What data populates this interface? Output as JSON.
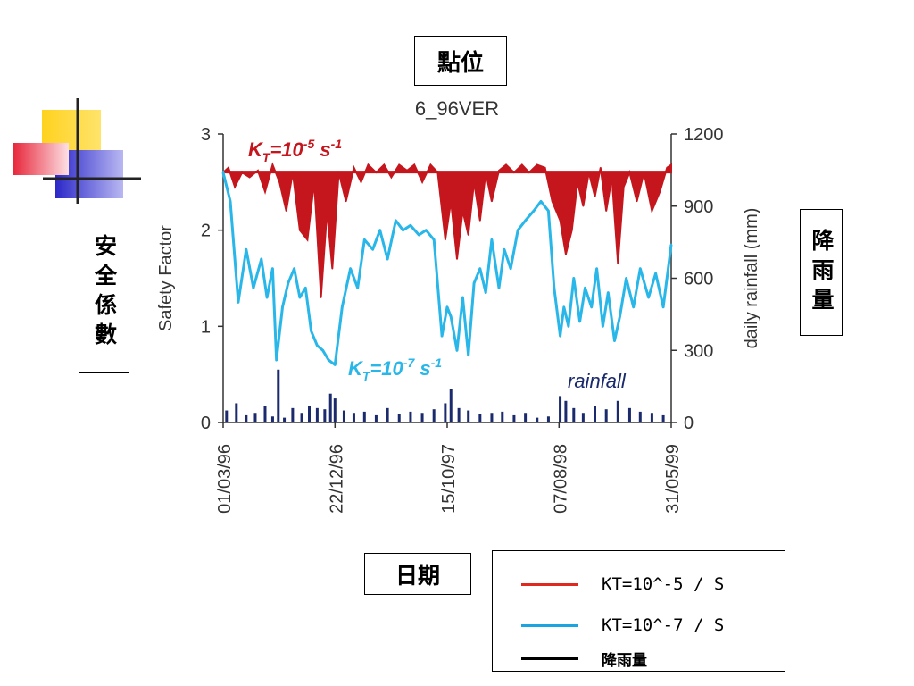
{
  "annotations": {
    "point_label": "點位",
    "date_label": "日期",
    "safety_label": "安全係數",
    "rainfall_label": "降雨量"
  },
  "legend": {
    "items": [
      {
        "label": "KT=10^-5 / S",
        "color": "#e0281e"
      },
      {
        "label": "KT=10^-7 / S",
        "color": "#1aa4e0"
      },
      {
        "label": "降雨量",
        "color": "#000000"
      }
    ]
  },
  "colors": {
    "red_series": "#c4161c",
    "blue_series": "#29b6e8",
    "rain_series": "#1a2a6c",
    "deco_yellow": "#ffd21f",
    "deco_blue": "#3a37d6",
    "deco_red": "#f04050"
  },
  "chart_data": {
    "type": "line",
    "title": "6_96VER",
    "ylabel": "Safety Factor",
    "y2label": "daily rainfall (mm)",
    "ylim": [
      0,
      3
    ],
    "y2lim": [
      0,
      1200
    ],
    "yticks": [
      "0",
      "1",
      "2",
      "3"
    ],
    "y2ticks": [
      "0",
      "300",
      "600",
      "900",
      "1200"
    ],
    "xticks": [
      "01/03/96",
      "22/12/96",
      "15/10/97",
      "07/08/98",
      "31/05/99"
    ],
    "xlim": [
      "1996-03-01",
      "1999-05-31"
    ],
    "annotations": {
      "red": {
        "base": "K",
        "sub": "T",
        "mid": "=10",
        "sup": "-5",
        "unit": " s",
        "unit_sup": "-1"
      },
      "blue": {
        "base": "K",
        "sub": "T",
        "mid": "=10",
        "sup": "-7",
        "unit": " s",
        "unit_sup": "-1"
      },
      "rain": "rainfall"
    },
    "series": [
      {
        "kind": "red",
        "axis": "left",
        "baseline": 2.6,
        "x": [
          "1996-03-01",
          "1996-03-15",
          "1996-04-01",
          "1996-04-20",
          "1996-05-10",
          "1996-06-01",
          "1996-06-20",
          "1996-07-10",
          "1996-07-28",
          "1996-08-15",
          "1996-09-01",
          "1996-09-20",
          "1996-10-10",
          "1996-10-28",
          "1996-11-15",
          "1996-12-01",
          "1996-12-15",
          "1997-01-01",
          "1997-01-20",
          "1997-02-10",
          "1997-03-01",
          "1997-03-20",
          "1997-04-10",
          "1997-05-01",
          "1997-05-20",
          "1997-06-10",
          "1997-07-01",
          "1997-07-20",
          "1997-08-10",
          "1997-09-01",
          "1997-09-20",
          "1997-10-10",
          "1997-10-25",
          "1997-11-10",
          "1997-11-25",
          "1997-12-10",
          "1997-12-25",
          "1998-01-10",
          "1998-01-25",
          "1998-02-10",
          "1998-03-01",
          "1998-03-20",
          "1998-04-10",
          "1998-05-01",
          "1998-05-20",
          "1998-06-10",
          "1998-07-01",
          "1998-07-20",
          "1998-08-10",
          "1998-08-25",
          "1998-09-10",
          "1998-09-25",
          "1998-10-10",
          "1998-10-25",
          "1998-11-10",
          "1998-11-25",
          "1998-12-10",
          "1998-12-25",
          "1999-01-10",
          "1999-01-25",
          "1999-02-10",
          "1999-03-01",
          "1999-03-20",
          "1999-04-10",
          "1999-05-01",
          "1999-05-20",
          "1999-05-31"
        ],
        "values": [
          2.6,
          2.65,
          2.45,
          2.6,
          2.55,
          2.62,
          2.4,
          2.68,
          2.5,
          2.2,
          2.6,
          2.0,
          1.9,
          2.5,
          1.3,
          2.2,
          1.6,
          2.6,
          2.3,
          2.65,
          2.5,
          2.68,
          2.6,
          2.68,
          2.55,
          2.68,
          2.62,
          2.68,
          2.5,
          2.68,
          2.6,
          1.9,
          2.3,
          1.7,
          2.2,
          1.95,
          2.5,
          2.1,
          2.6,
          2.3,
          2.62,
          2.68,
          2.6,
          2.68,
          2.6,
          2.68,
          2.65,
          2.3,
          2.1,
          1.75,
          2.0,
          2.5,
          2.25,
          2.6,
          2.35,
          2.65,
          2.2,
          2.55,
          1.65,
          2.45,
          2.6,
          2.3,
          2.6,
          2.2,
          2.4,
          2.65,
          2.68
        ]
      },
      {
        "kind": "blue",
        "axis": "left",
        "x": [
          "1996-03-01",
          "1996-03-20",
          "1996-04-10",
          "1996-05-01",
          "1996-05-20",
          "1996-06-10",
          "1996-06-25",
          "1996-07-10",
          "1996-07-20",
          "1996-08-05",
          "1996-08-20",
          "1996-09-05",
          "1996-09-20",
          "1996-10-05",
          "1996-10-20",
          "1996-11-05",
          "1996-11-20",
          "1996-12-05",
          "1996-12-22",
          "1997-01-10",
          "1997-02-01",
          "1997-02-20",
          "1997-03-10",
          "1997-04-01",
          "1997-04-20",
          "1997-05-10",
          "1997-06-01",
          "1997-06-20",
          "1997-07-10",
          "1997-08-01",
          "1997-08-20",
          "1997-09-10",
          "1997-10-01",
          "1997-10-15",
          "1997-10-25",
          "1997-11-10",
          "1997-11-25",
          "1997-12-10",
          "1997-12-25",
          "1998-01-10",
          "1998-01-25",
          "1998-02-10",
          "1998-03-01",
          "1998-03-15",
          "1998-04-01",
          "1998-04-20",
          "1998-05-10",
          "1998-06-01",
          "1998-06-20",
          "1998-07-10",
          "1998-07-25",
          "1998-08-10",
          "1998-08-20",
          "1998-09-01",
          "1998-09-15",
          "1998-10-01",
          "1998-10-15",
          "1998-11-01",
          "1998-11-15",
          "1998-12-01",
          "1998-12-15",
          "1999-01-01",
          "1999-01-15",
          "1999-02-01",
          "1999-02-20",
          "1999-03-10",
          "1999-04-01",
          "1999-04-20",
          "1999-05-10",
          "1999-05-31"
        ],
        "values": [
          2.6,
          2.3,
          1.25,
          1.8,
          1.4,
          1.7,
          1.3,
          1.6,
          0.65,
          1.2,
          1.45,
          1.6,
          1.3,
          1.4,
          0.95,
          0.8,
          0.75,
          0.65,
          0.6,
          1.2,
          1.6,
          1.4,
          1.9,
          1.8,
          2.0,
          1.7,
          2.1,
          2.0,
          2.05,
          1.95,
          2.0,
          1.9,
          0.9,
          1.2,
          1.1,
          0.75,
          1.3,
          0.7,
          1.45,
          1.6,
          1.35,
          1.9,
          1.4,
          1.8,
          1.6,
          2.0,
          2.1,
          2.2,
          2.3,
          2.2,
          1.4,
          0.9,
          1.2,
          1.0,
          1.5,
          1.05,
          1.4,
          1.2,
          1.6,
          1.0,
          1.35,
          0.85,
          1.1,
          1.5,
          1.2,
          1.6,
          1.3,
          1.55,
          1.2,
          1.85
        ]
      },
      {
        "kind": "rain",
        "axis": "right",
        "x": [
          "1996-03-10",
          "1996-04-05",
          "1996-05-01",
          "1996-05-25",
          "1996-06-20",
          "1996-07-10",
          "1996-07-25",
          "1996-08-10",
          "1996-09-01",
          "1996-09-25",
          "1996-10-15",
          "1996-11-05",
          "1996-11-25",
          "1996-12-10",
          "1996-12-22",
          "1997-01-15",
          "1997-02-10",
          "1997-03-10",
          "1997-04-10",
          "1997-05-10",
          "1997-06-10",
          "1997-07-10",
          "1997-08-10",
          "1997-09-10",
          "1997-10-10",
          "1997-10-25",
          "1997-11-15",
          "1997-12-10",
          "1998-01-10",
          "1998-02-10",
          "1998-03-10",
          "1998-04-10",
          "1998-05-10",
          "1998-06-10",
          "1998-07-10",
          "1998-08-10",
          "1998-08-25",
          "1998-09-15",
          "1998-10-10",
          "1998-11-10",
          "1998-12-10",
          "1999-01-10",
          "1999-02-10",
          "1999-03-10",
          "1999-04-10",
          "1999-05-10"
        ],
        "values": [
          50,
          80,
          30,
          40,
          70,
          25,
          220,
          20,
          60,
          40,
          70,
          60,
          55,
          120,
          100,
          50,
          40,
          45,
          30,
          60,
          35,
          45,
          40,
          55,
          80,
          140,
          60,
          50,
          35,
          40,
          45,
          30,
          40,
          20,
          25,
          110,
          90,
          60,
          40,
          70,
          55,
          90,
          60,
          45,
          40,
          30
        ]
      }
    ]
  }
}
